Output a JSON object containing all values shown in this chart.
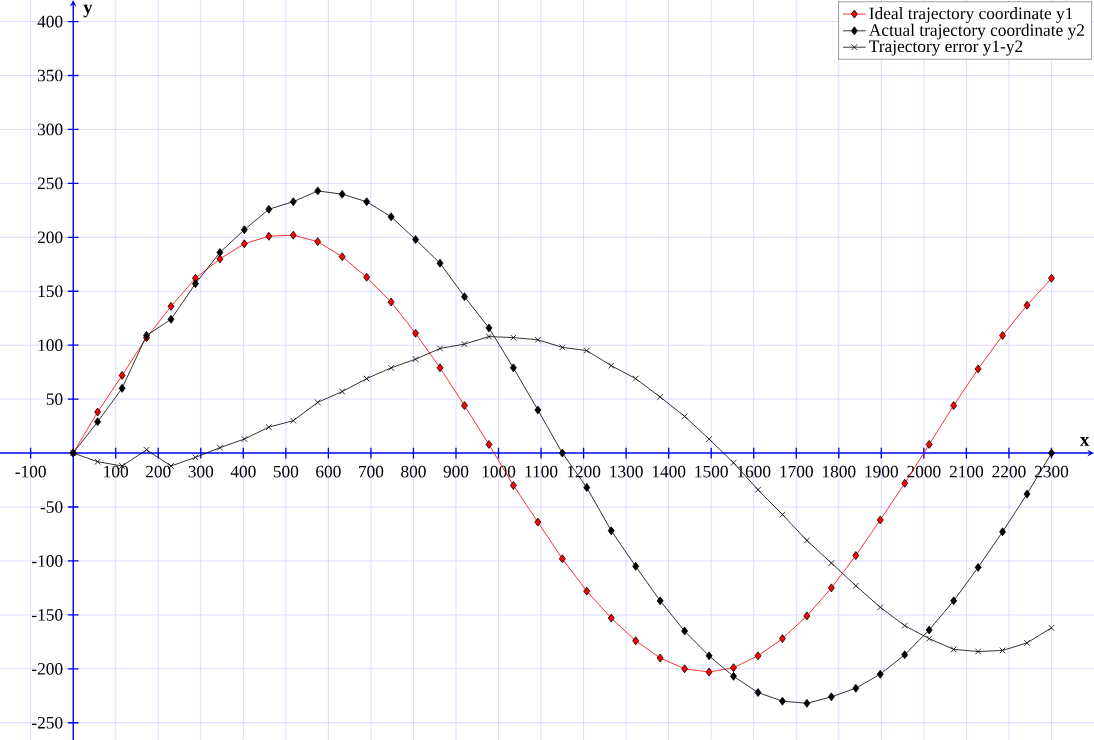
{
  "chart_data": {
    "type": "line",
    "xlabel": "x",
    "ylabel": "y",
    "x": [
      0,
      57.5,
      115,
      172.5,
      230,
      287.5,
      345,
      402.5,
      460,
      517.5,
      575,
      632.5,
      690,
      747.5,
      805,
      862.5,
      920,
      977.5,
      1035,
      1092.5,
      1150,
      1207.5,
      1265,
      1322.5,
      1380,
      1437.5,
      1495,
      1552.5,
      1610,
      1667.5,
      1725,
      1782.5,
      1840,
      1897.5,
      1955,
      2012.5,
      2070,
      2127.5,
      2185,
      2242.5,
      2300
    ],
    "series": [
      {
        "name": "Ideal trajectory coordinate y1",
        "color": "#ff0000",
        "marker": "diamond",
        "values": [
          0,
          38,
          72,
          107,
          136,
          162,
          180,
          194,
          201,
          202,
          196,
          182,
          163,
          140,
          111,
          79,
          44,
          8,
          -30,
          -64,
          -98,
          -128,
          -153,
          -174,
          -190,
          -200,
          -203,
          -199,
          -188,
          -172,
          -151,
          -125,
          -95,
          -62,
          -28,
          8,
          44,
          78,
          109,
          137,
          162
        ]
      },
      {
        "name": "Actual trajectory coordinate y2",
        "color": "#000000",
        "marker": "diamond",
        "values": [
          0,
          29,
          60,
          109,
          124,
          157,
          186,
          207,
          226,
          233,
          243,
          240,
          233,
          219,
          198,
          176,
          145,
          116,
          79,
          40,
          0,
          -32,
          -72,
          -105,
          -137,
          -165,
          -188,
          -207,
          -222,
          -230,
          -232,
          -226,
          -218,
          -205,
          -187,
          -164,
          -137,
          -106,
          -73,
          -38,
          0
        ]
      },
      {
        "name": "Trajectory error y1-y2",
        "color": "#000000",
        "marker": "cross",
        "values": [
          0,
          -8,
          -12,
          3,
          -12,
          -4,
          5,
          13,
          24,
          30,
          47,
          57,
          69,
          79,
          87,
          97,
          101,
          108,
          107,
          105,
          98,
          95,
          81,
          69,
          52,
          34,
          13,
          -9,
          -34,
          -57,
          -81,
          -102,
          -123,
          -143,
          -160,
          -172,
          -182,
          -184,
          -183,
          -176,
          -162
        ]
      }
    ],
    "xlim": [
      -172,
      2400
    ],
    "ylim": [
      -266,
      420
    ],
    "xticks": [
      -100,
      100,
      200,
      300,
      400,
      500,
      600,
      700,
      800,
      900,
      1000,
      1100,
      1200,
      1300,
      1400,
      1500,
      1600,
      1700,
      1800,
      1900,
      2000,
      2100,
      2200,
      2300
    ],
    "yticks": [
      -250,
      -200,
      -150,
      -100,
      -50,
      50,
      100,
      150,
      200,
      250,
      300,
      350,
      400
    ],
    "grid": true,
    "legend": "top right"
  }
}
